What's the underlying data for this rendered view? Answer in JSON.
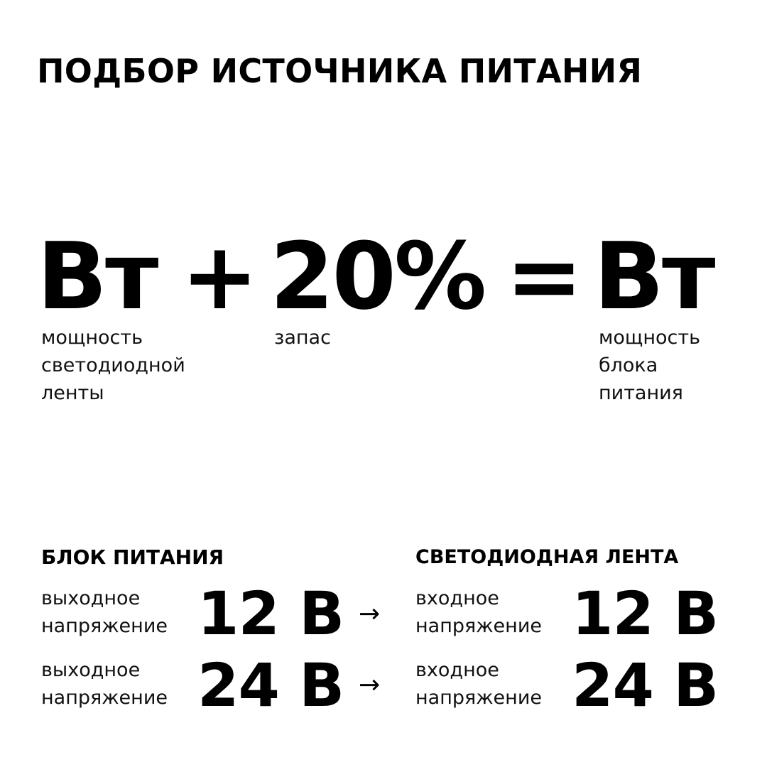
{
  "title": "ПОДБОР ИСТОЧНИКА ПИТАНИЯ",
  "formula": {
    "term1": "Вт",
    "plus": "+",
    "term2": "20%",
    "equals": "=",
    "result": "Вт",
    "term1_label": [
      "мощность",
      "светодиодной",
      "ленты"
    ],
    "term2_label": [
      "запас"
    ],
    "result_label": [
      "мощность",
      "блока",
      "питания"
    ]
  },
  "power_supply": {
    "heading": "БЛОК ПИТАНИЯ",
    "rows": [
      {
        "label": [
          "выходное",
          "напряжение"
        ],
        "value": "12 В"
      },
      {
        "label": [
          "выходное",
          "напряжение"
        ],
        "value": "24 В"
      }
    ]
  },
  "led_strip": {
    "heading": "СВЕТОДИОДНАЯ ЛЕНТА",
    "rows": [
      {
        "label": [
          "входное",
          "напряжение"
        ],
        "value": "12 В"
      },
      {
        "label": [
          "входное",
          "напряжение"
        ],
        "value": "24 В"
      }
    ]
  },
  "arrow_icon": "right-arrow-icon"
}
